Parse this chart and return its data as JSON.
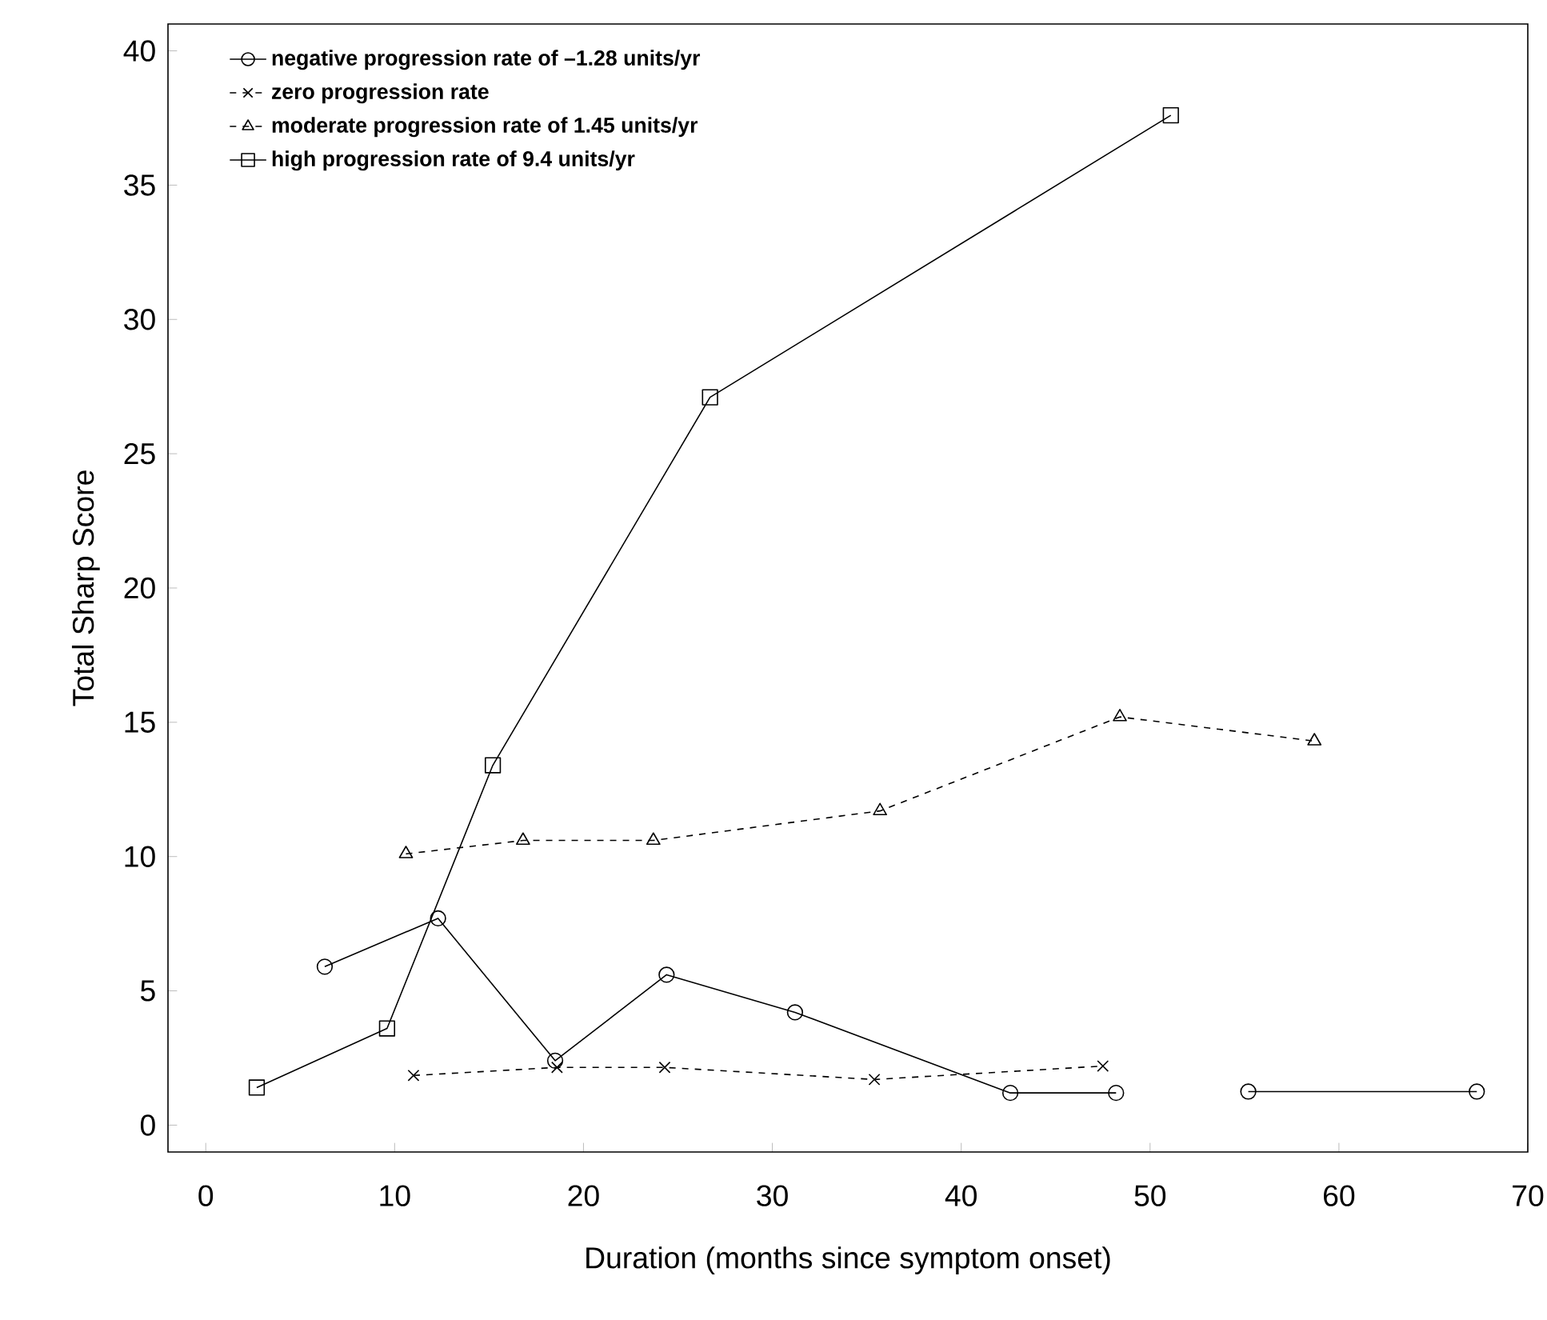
{
  "chart_data": {
    "type": "line",
    "xlabel": "Duration (months since symptom onset)",
    "ylabel": "Total Sharp Score",
    "xlim": [
      -2,
      70
    ],
    "ylim": [
      -1,
      41
    ],
    "xticks": [
      0,
      10,
      20,
      30,
      40,
      50,
      60,
      70
    ],
    "yticks": [
      0,
      5,
      10,
      15,
      20,
      25,
      30,
      35,
      40
    ],
    "grid": false,
    "legend": "top left",
    "series": [
      {
        "name": "negative progression rate of –1.28 units/yr",
        "color": "#000000",
        "marker": "circle",
        "line_style": "solid",
        "x": [
          6.3,
          12.3,
          18.5,
          24.4,
          31.2,
          42.6,
          48.2,
          51.5,
          55.2,
          67.3
        ],
        "values": [
          5.9,
          7.7,
          2.4,
          5.6,
          4.2,
          1.2,
          1.2,
          null,
          1.25,
          1.25
        ]
      },
      {
        "name": "zero progression rate",
        "color": "#000000",
        "marker": "cross",
        "line_style": "dashed",
        "x": [
          11.0,
          18.6,
          24.3,
          35.4,
          47.5
        ],
        "values": [
          1.85,
          2.15,
          2.15,
          1.7,
          2.2
        ]
      },
      {
        "name": "moderate progression rate of 1.45 units/yr",
        "color": "#000000",
        "marker": "triangle",
        "line_style": "dashed",
        "x": [
          10.6,
          16.8,
          23.7,
          35.7,
          48.4,
          58.7
        ],
        "values": [
          10.1,
          10.6,
          10.6,
          11.7,
          15.2,
          14.3
        ]
      },
      {
        "name": "high progression rate of 9.4 units/yr",
        "color": "#000000",
        "marker": "square",
        "line_style": "solid",
        "x": [
          2.7,
          9.6,
          15.2,
          26.7,
          51.1
        ],
        "values": [
          1.4,
          3.6,
          13.4,
          27.1,
          37.6
        ]
      }
    ]
  }
}
